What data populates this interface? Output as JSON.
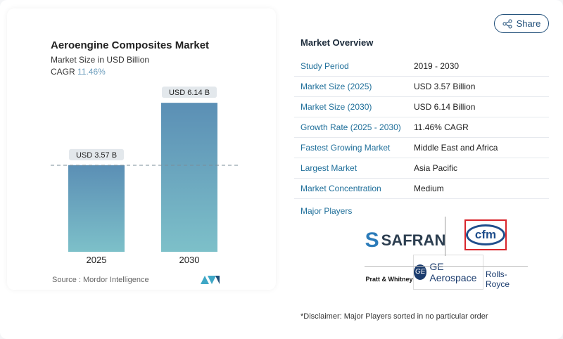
{
  "header": {
    "share_label": "Share",
    "share_icon": "share-icon"
  },
  "chart": {
    "title": "Aeroengine Composites Market",
    "subtitle": "Market Size in USD Billion",
    "cagr_label": "CAGR",
    "cagr_value": "11.46%",
    "source": "Source :  Mordor Intelligence"
  },
  "chart_data": {
    "type": "bar",
    "title": "Aeroengine Composites Market",
    "ylabel": "Market Size in USD Billion",
    "categories": [
      "2025",
      "2030"
    ],
    "values": [
      3.57,
      6.14
    ],
    "data_labels": [
      "USD 3.57 B",
      "USD 6.14 B"
    ],
    "grid": false,
    "colors": {
      "top": "#5b8fb5",
      "bottom": "#7dc0c9"
    }
  },
  "overview": {
    "title": "Market Overview",
    "rows": [
      {
        "label": "Study Period",
        "value": "2019 - 2030"
      },
      {
        "label": "Market Size (2025)",
        "value": "USD 3.57 Billion"
      },
      {
        "label": "Market Size (2030)",
        "value": "USD 6.14 Billion"
      },
      {
        "label": "Growth Rate (2025 - 2030)",
        "value": "11.46% CAGR"
      },
      {
        "label": "Fastest Growing Market",
        "value": "Middle East and Africa"
      },
      {
        "label": "Largest Market",
        "value": "Asia Pacific"
      },
      {
        "label": "Market Concentration",
        "value": "Medium"
      }
    ],
    "major_players_label": "Major Players",
    "players": [
      "SAFRAN",
      "cfm",
      "Pratt & Whitney",
      "GE Aerospace",
      "Rolls-Royce"
    ],
    "disclaimer": "*Disclaimer: Major Players sorted in no particular order"
  }
}
